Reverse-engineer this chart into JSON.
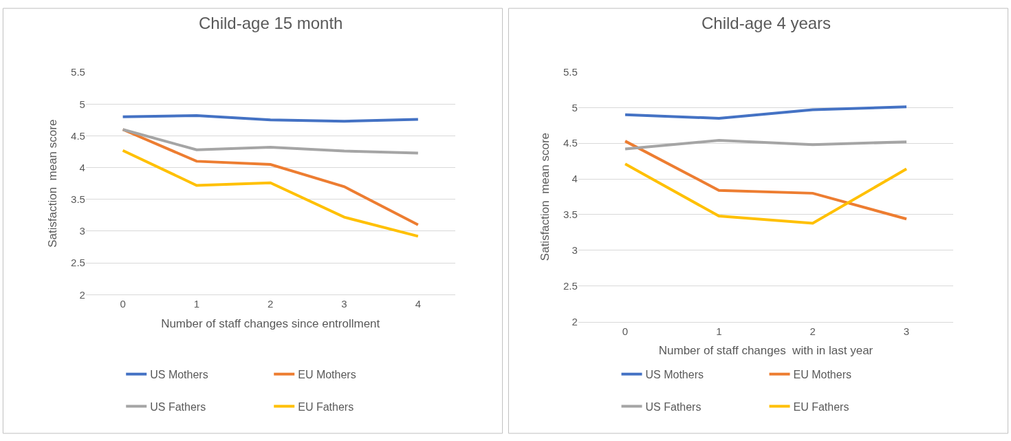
{
  "chart_data": [
    {
      "type": "line",
      "title": "Child-age 15 month",
      "xlabel": "Number of staff changes since entrollment",
      "ylabel": "Satisfaction  mean score",
      "categories": [
        "0",
        "1",
        "2",
        "3",
        "4"
      ],
      "ylim": [
        2,
        5.5
      ],
      "yticks": [
        2,
        2.5,
        3,
        3.5,
        4,
        4.5,
        5,
        5.5
      ],
      "grid": "y",
      "legend": "bottom",
      "marker": "none",
      "line_style": "solid",
      "series": [
        {
          "name": "US Mothers",
          "color": "#4472c4",
          "values": [
            4.8,
            4.82,
            4.75,
            4.73,
            4.76
          ]
        },
        {
          "name": "EU Mothers",
          "color": "#ed7d31",
          "values": [
            4.6,
            4.1,
            4.05,
            3.7,
            3.1
          ]
        },
        {
          "name": "US Fathers",
          "color": "#a5a5a5",
          "values": [
            4.6,
            4.28,
            4.32,
            4.26,
            4.23
          ]
        },
        {
          "name": "EU Fathers",
          "color": "#ffc000",
          "values": [
            4.27,
            3.72,
            3.76,
            3.22,
            2.92
          ]
        }
      ]
    },
    {
      "type": "line",
      "title": "Child-age 4 years",
      "xlabel": "Number of staff changes  with in last year",
      "ylabel": "Satisfaction  mean score",
      "categories": [
        "0",
        "1",
        "2",
        "3"
      ],
      "ylim": [
        2,
        5.5
      ],
      "yticks": [
        2,
        2.5,
        3,
        3.5,
        4,
        4.5,
        5,
        5.5
      ],
      "grid": "y",
      "legend": "bottom",
      "marker": "none",
      "line_style": "solid",
      "series": [
        {
          "name": "US Mothers",
          "color": "#4472c4",
          "values": [
            4.9,
            4.85,
            4.97,
            5.01
          ]
        },
        {
          "name": "EU Mothers",
          "color": "#ed7d31",
          "values": [
            4.53,
            3.84,
            3.8,
            3.44
          ]
        },
        {
          "name": "US Fathers",
          "color": "#a5a5a5",
          "values": [
            4.42,
            4.54,
            4.48,
            4.52
          ]
        },
        {
          "name": "EU Fathers",
          "color": "#ffc000",
          "values": [
            4.21,
            3.48,
            3.38,
            4.14
          ]
        }
      ]
    }
  ]
}
